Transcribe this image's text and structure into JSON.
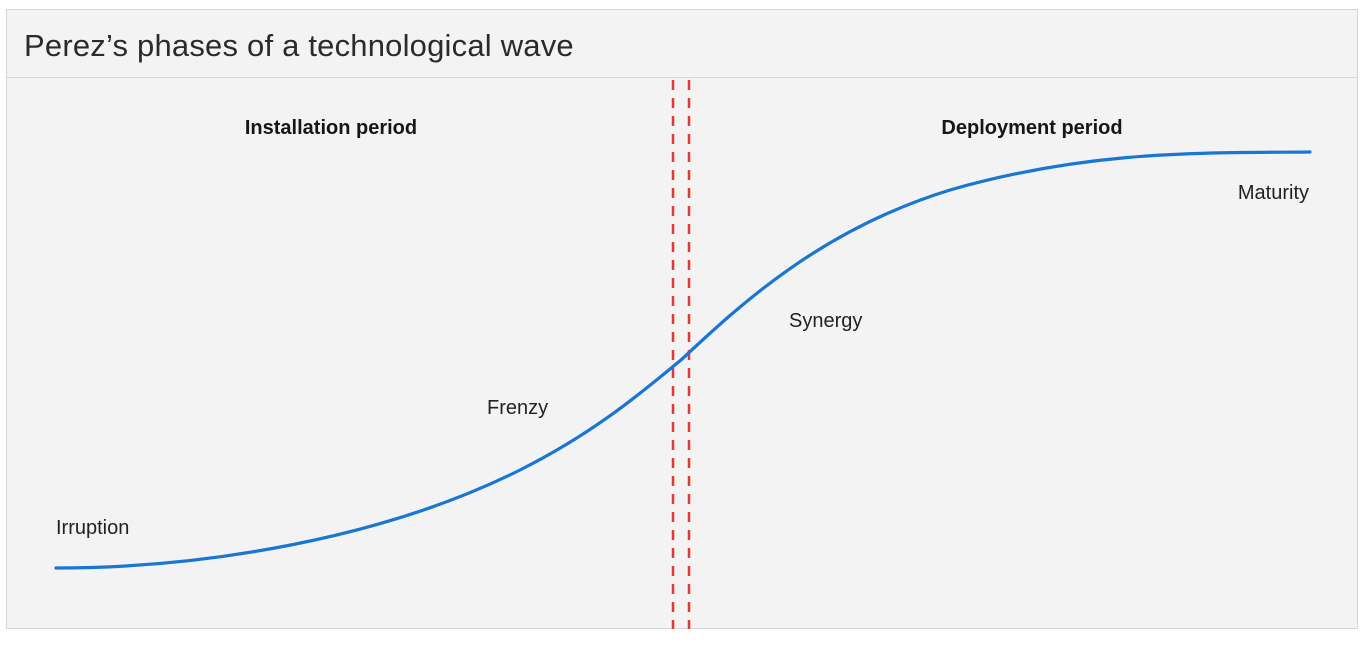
{
  "title": "Perez’s phases of a technological wave",
  "periods": {
    "installation": "Installation period",
    "deployment": "Deployment period"
  },
  "phases": {
    "irruption": "Irruption",
    "frenzy": "Frenzy",
    "synergy": "Synergy",
    "maturity": "Maturity"
  },
  "colors": {
    "curve": "#1976d2",
    "divider": "#e53935",
    "background": "#f3f3f3",
    "border": "#d6d6d6"
  }
}
